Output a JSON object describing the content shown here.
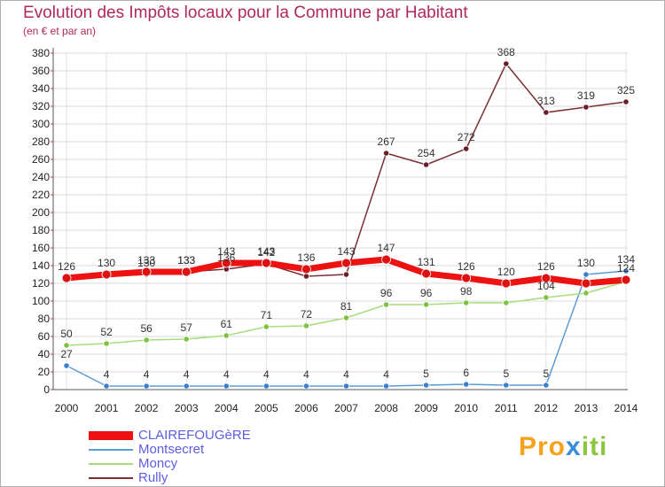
{
  "title": "Evolution des Impôts locaux pour la Commune par Habitant",
  "subtitle": "(en € et par an)",
  "logo": {
    "part1": "Pro",
    "part2": "x",
    "part3": "iti"
  },
  "chart_data": {
    "type": "line",
    "xlabel": "",
    "ylabel": "",
    "ylim": [
      0,
      380
    ],
    "yticks": [
      0,
      20,
      40,
      60,
      80,
      100,
      120,
      140,
      160,
      180,
      200,
      220,
      240,
      260,
      280,
      300,
      320,
      340,
      360,
      380
    ],
    "x": [
      "2000",
      "2001",
      "2002",
      "2003",
      "2004",
      "2005",
      "2006",
      "2007",
      "2008",
      "2009",
      "2010",
      "2011",
      "2012",
      "2013",
      "2014"
    ],
    "grid": true,
    "legend_position": "bottom-left",
    "series": [
      {
        "name": "Montsecret",
        "color": "#5b9bd5",
        "marker": "#3b7fcf",
        "width": 1.5,
        "values": [
          27,
          4,
          4,
          4,
          4,
          4,
          4,
          4,
          4,
          5,
          6,
          5,
          5,
          130,
          134
        ],
        "labels": [
          "27",
          "4",
          "4",
          "4",
          "4",
          "4",
          "4",
          "4",
          "4",
          "5",
          "6",
          "5",
          "5",
          "130",
          "134"
        ]
      },
      {
        "name": "Moncy",
        "color": "#a8dc7c",
        "marker": "#7fc241",
        "width": 1.5,
        "values": [
          50,
          52,
          56,
          57,
          61,
          71,
          72,
          81,
          96,
          96,
          98,
          98,
          104,
          109,
          122
        ],
        "labels": [
          "50",
          "52",
          "56",
          "57",
          "61",
          "71",
          "72",
          "81",
          "96",
          "96",
          "98",
          "",
          "104",
          "",
          ""
        ]
      },
      {
        "name": "Rully",
        "color": "#7a3030",
        "marker": "#6b1e2a",
        "width": 1.5,
        "values": [
          124,
          128,
          130,
          133,
          136,
          142,
          128,
          130,
          267,
          254,
          272,
          368,
          313,
          319,
          325
        ],
        "labels": [
          "",
          "",
          "130",
          "133",
          "136",
          "142",
          "",
          "",
          "267",
          "254",
          "272",
          "368",
          "313",
          "319",
          "325"
        ]
      },
      {
        "name": "CLAIREFOUGèRE",
        "color": "#ee1111",
        "marker": "#dd1111",
        "width": 7,
        "values": [
          126,
          130,
          133,
          133,
          143,
          143,
          136,
          143,
          147,
          131,
          126,
          120,
          126,
          120,
          124
        ],
        "labels": [
          "126",
          "130",
          "133",
          "133",
          "143",
          "143",
          "136",
          "143",
          "147",
          "131",
          "126",
          "120",
          "126",
          "",
          "124"
        ]
      }
    ]
  },
  "legend": [
    {
      "label": "CLAIREFOUGèRE"
    },
    {
      "label": "Montsecret"
    },
    {
      "label": "Moncy"
    },
    {
      "label": "Rully"
    }
  ]
}
